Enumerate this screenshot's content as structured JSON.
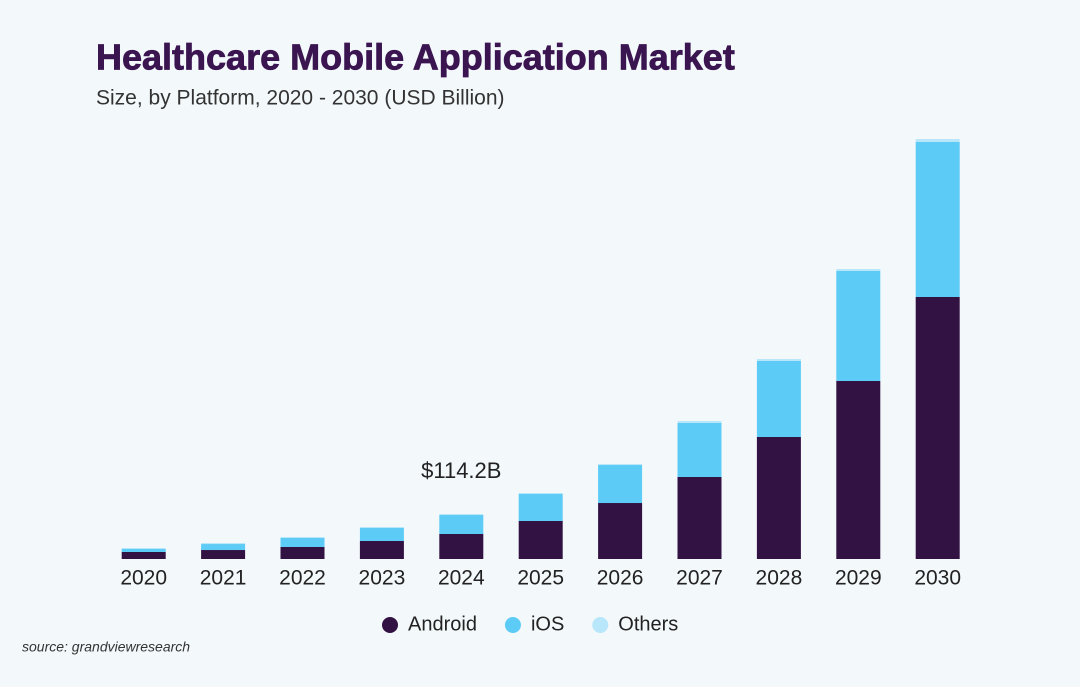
{
  "chart_data": {
    "type": "stacked-bar",
    "title": "Healthcare Mobile Application Market",
    "subtitle": "Size, by Platform, 2020 - 2030 (USD Billion)",
    "categories": [
      "2020",
      "2021",
      "2022",
      "2023",
      "2024",
      "2025",
      "2026",
      "2027",
      "2028",
      "2029",
      "2030"
    ],
    "series": [
      {
        "name": "Android",
        "color": "#321143",
        "values": [
          17.8,
          22.8,
          30.5,
          45.7,
          63.5,
          96.5,
          142.2,
          208.3,
          309.9,
          452.1,
          665.5
        ]
      },
      {
        "name": "iOS",
        "color": "#5ccbf5",
        "values": [
          7.6,
          15.2,
          22.9,
          33.0,
          48.2,
          68.6,
          96.5,
          137.2,
          193.0,
          279.4,
          393.7
        ]
      },
      {
        "name": "Others",
        "color": "#b8e6fa",
        "values": [
          2.5,
          2.5,
          2.5,
          2.5,
          2.5,
          2.5,
          2.5,
          5.1,
          5.1,
          5.1,
          7.6
        ]
      }
    ],
    "annotation": {
      "category": "2024",
      "value": 114.2,
      "label": "$114.2B"
    },
    "source": "source: grandviewresearch"
  }
}
